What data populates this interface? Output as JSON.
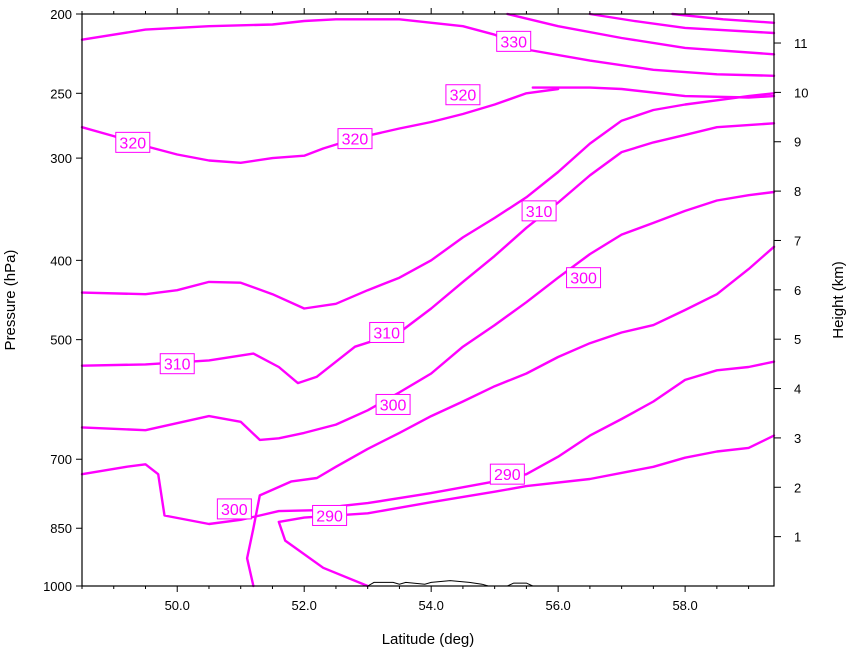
{
  "chart_data": {
    "type": "line",
    "title": "",
    "xlabel": "Latitude (deg)",
    "ylabel": "Pressure (hPa)",
    "ylabel_right": "Height (km)",
    "xlim": [
      48.5,
      59.4
    ],
    "x_ticks": [
      50.0,
      52.0,
      54.0,
      56.0,
      58.0
    ],
    "x_tick_labels": [
      "50.0",
      "52.0",
      "54.0",
      "56.0",
      "58.0"
    ],
    "y_scale": "log",
    "ylim": [
      1000,
      200
    ],
    "y_ticks": [
      200,
      250,
      300,
      400,
      500,
      700,
      850,
      1000
    ],
    "y_tick_labels": [
      "200",
      "250",
      "300",
      "400",
      "500",
      "700",
      "850",
      "1000"
    ],
    "right_ticks_km": [
      1,
      2,
      3,
      4,
      5,
      6,
      7,
      8,
      9,
      10,
      11
    ],
    "right_tick_labels": [
      "1",
      "2",
      "3",
      "4",
      "5",
      "6",
      "7",
      "8",
      "9",
      "10",
      "11"
    ],
    "contour_color": "#ff00ff",
    "terrain_color": "#000000",
    "series": [
      {
        "name": "",
        "values": [
          [
            48.5,
            215
          ],
          [
            49.5,
            209
          ],
          [
            50.5,
            207
          ],
          [
            51.5,
            206
          ],
          [
            52.0,
            204
          ],
          [
            52.5,
            203
          ],
          [
            53.5,
            203
          ],
          [
            54.5,
            207
          ],
          [
            55.0,
            212
          ],
          [
            55.5,
            221
          ],
          [
            56.5,
            228
          ],
          [
            57.5,
            234
          ],
          [
            58.5,
            237
          ],
          [
            59.4,
            238
          ]
        ]
      },
      {
        "name": "",
        "values": [
          [
            55.2,
            200
          ],
          [
            56.0,
            207
          ],
          [
            57.0,
            214
          ],
          [
            58.0,
            220
          ],
          [
            59.4,
            224
          ]
        ]
      },
      {
        "name": "",
        "values": [
          [
            56.5,
            200
          ],
          [
            57.2,
            204
          ],
          [
            58.0,
            208
          ],
          [
            59.4,
            211
          ]
        ]
      },
      {
        "name": "",
        "values": [
          [
            57.8,
            200
          ],
          [
            58.6,
            203
          ],
          [
            59.4,
            205
          ]
        ]
      },
      {
        "name": "",
        "values": [
          [
            55.6,
            246
          ],
          [
            56.5,
            246
          ],
          [
            57.0,
            247
          ],
          [
            58.0,
            252
          ],
          [
            59.0,
            253
          ],
          [
            59.4,
            252
          ]
        ]
      },
      {
        "name": "",
        "values": [
          [
            48.5,
            275
          ],
          [
            49.0,
            282
          ],
          [
            49.5,
            290
          ],
          [
            50.0,
            297
          ],
          [
            50.5,
            302
          ],
          [
            51.0,
            304
          ],
          [
            51.5,
            300
          ],
          [
            52.0,
            298
          ],
          [
            52.3,
            292
          ],
          [
            52.8,
            284
          ],
          [
            53.5,
            276
          ],
          [
            54.0,
            271
          ],
          [
            54.5,
            265
          ],
          [
            55.0,
            258
          ],
          [
            55.5,
            250
          ],
          [
            56.0,
            247
          ]
        ]
      },
      {
        "name": "",
        "values": [
          [
            48.5,
            438
          ],
          [
            49.5,
            440
          ],
          [
            50.0,
            435
          ],
          [
            50.5,
            425
          ],
          [
            51.0,
            426
          ],
          [
            51.5,
            440
          ],
          [
            52.0,
            458
          ],
          [
            52.5,
            452
          ],
          [
            53.0,
            435
          ],
          [
            53.5,
            420
          ],
          [
            54.0,
            400
          ],
          [
            54.5,
            375
          ],
          [
            55.0,
            355
          ],
          [
            55.5,
            335
          ],
          [
            56.0,
            312
          ],
          [
            56.5,
            288
          ],
          [
            57.0,
            270
          ],
          [
            57.5,
            262
          ],
          [
            58.0,
            258
          ],
          [
            58.5,
            255
          ],
          [
            59.0,
            252
          ],
          [
            59.4,
            250
          ]
        ]
      },
      {
        "name": "",
        "values": [
          [
            48.5,
            538
          ],
          [
            49.5,
            536
          ],
          [
            50.5,
            530
          ],
          [
            51.2,
            520
          ],
          [
            51.6,
            540
          ],
          [
            51.9,
            565
          ],
          [
            52.2,
            555
          ],
          [
            52.8,
            510
          ],
          [
            53.5,
            490
          ],
          [
            54.0,
            458
          ],
          [
            54.5,
            425
          ],
          [
            55.0,
            395
          ],
          [
            55.5,
            365
          ],
          [
            56.0,
            340
          ],
          [
            56.5,
            315
          ],
          [
            57.0,
            295
          ],
          [
            57.5,
            287
          ],
          [
            58.0,
            281
          ],
          [
            58.5,
            275
          ],
          [
            59.4,
            272
          ]
        ]
      },
      {
        "name": "",
        "values": [
          [
            48.5,
            640
          ],
          [
            49.5,
            645
          ],
          [
            50.5,
            620
          ],
          [
            51.0,
            630
          ],
          [
            51.3,
            663
          ],
          [
            51.6,
            660
          ],
          [
            52.0,
            650
          ],
          [
            52.5,
            635
          ],
          [
            53.0,
            610
          ],
          [
            53.5,
            580
          ],
          [
            54.0,
            550
          ],
          [
            54.5,
            510
          ],
          [
            55.0,
            480
          ],
          [
            55.5,
            450
          ],
          [
            56.0,
            420
          ],
          [
            56.5,
            393
          ],
          [
            57.0,
            372
          ],
          [
            57.5,
            360
          ],
          [
            58.0,
            348
          ],
          [
            58.5,
            338
          ],
          [
            59.0,
            333
          ],
          [
            59.4,
            330
          ]
        ]
      },
      {
        "name": "",
        "values": [
          [
            48.5,
            730
          ],
          [
            49.2,
            715
          ],
          [
            49.5,
            710
          ],
          [
            49.7,
            730
          ],
          [
            49.8,
            820
          ],
          [
            50.5,
            840
          ],
          [
            51.0,
            830
          ],
          [
            51.3,
            820
          ],
          [
            51.6,
            810
          ],
          [
            52.2,
            808
          ],
          [
            52.6,
            798
          ],
          [
            53.0,
            792
          ],
          [
            54.0,
            770
          ],
          [
            55.0,
            745
          ],
          [
            55.5,
            730
          ],
          [
            56.0,
            695
          ],
          [
            56.5,
            655
          ],
          [
            57.0,
            625
          ],
          [
            57.5,
            595
          ],
          [
            58.0,
            560
          ],
          [
            58.5,
            545
          ],
          [
            59.0,
            540
          ],
          [
            59.4,
            532
          ]
        ]
      },
      {
        "name": "",
        "values": [
          [
            51.2,
            1000
          ],
          [
            51.1,
            925
          ],
          [
            51.2,
            850
          ],
          [
            51.3,
            775
          ],
          [
            51.8,
            745
          ],
          [
            52.2,
            738
          ],
          [
            52.5,
            715
          ],
          [
            53.0,
            680
          ],
          [
            53.5,
            650
          ],
          [
            54.0,
            620
          ],
          [
            54.5,
            595
          ],
          [
            55.0,
            570
          ],
          [
            55.5,
            550
          ],
          [
            56.0,
            525
          ],
          [
            56.5,
            505
          ],
          [
            57.0,
            490
          ],
          [
            57.5,
            480
          ],
          [
            58.0,
            460
          ],
          [
            58.5,
            440
          ],
          [
            59.0,
            410
          ],
          [
            59.4,
            385
          ]
        ]
      },
      {
        "name": "",
        "values": [
          [
            53.0,
            1000
          ],
          [
            52.3,
            950
          ],
          [
            51.7,
            880
          ],
          [
            51.6,
            835
          ],
          [
            52.0,
            825
          ],
          [
            53.0,
            815
          ],
          [
            54.0,
            790
          ],
          [
            55.0,
            767
          ],
          [
            55.5,
            755
          ],
          [
            56.5,
            740
          ],
          [
            57.5,
            715
          ],
          [
            58.0,
            697
          ],
          [
            58.5,
            685
          ],
          [
            59.0,
            678
          ],
          [
            59.4,
            655
          ]
        ]
      }
    ],
    "contour_labels": [
      {
        "text": "330",
        "lat": 55.3,
        "p": 216
      },
      {
        "text": "320",
        "lat": 54.5,
        "p": 251
      },
      {
        "text": "320",
        "lat": 49.3,
        "p": 287
      },
      {
        "text": "320",
        "lat": 52.8,
        "p": 284
      },
      {
        "text": "310",
        "lat": 55.7,
        "p": 348
      },
      {
        "text": "310",
        "lat": 53.3,
        "p": 490
      },
      {
        "text": "310",
        "lat": 50.0,
        "p": 535
      },
      {
        "text": "300",
        "lat": 53.4,
        "p": 600
      },
      {
        "text": "300",
        "lat": 56.4,
        "p": 420
      },
      {
        "text": "300",
        "lat": 50.9,
        "p": 805
      },
      {
        "text": "290",
        "lat": 55.2,
        "p": 730
      },
      {
        "text": "290",
        "lat": 52.4,
        "p": 820
      }
    ],
    "terrain": {
      "name": "terrain",
      "values": [
        [
          53.0,
          1000
        ],
        [
          53.1,
          990
        ],
        [
          53.4,
          990
        ],
        [
          53.5,
          995
        ],
        [
          53.6,
          990
        ],
        [
          53.9,
          995
        ],
        [
          54.0,
          990
        ],
        [
          54.3,
          985
        ],
        [
          54.6,
          990
        ],
        [
          54.8,
          995
        ],
        [
          54.9,
          1000
        ],
        [
          55.2,
          1000
        ],
        [
          55.3,
          992
        ],
        [
          55.5,
          992
        ],
        [
          55.6,
          1000
        ]
      ]
    }
  }
}
